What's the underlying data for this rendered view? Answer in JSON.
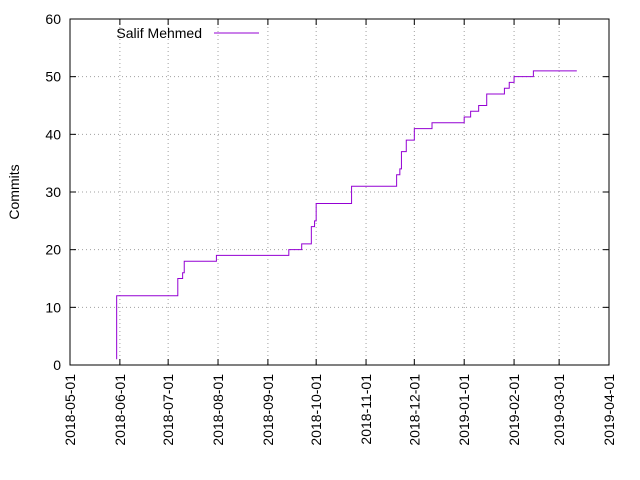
{
  "chart_data": {
    "type": "line",
    "title": "",
    "xlabel": "",
    "ylabel": "Commits",
    "ylim": [
      0,
      60
    ],
    "xlim": [
      "2018-05-01",
      "2019-04-01"
    ],
    "grid": true,
    "legend_position": "top-left",
    "yticks": [
      0,
      10,
      20,
      30,
      40,
      50,
      60
    ],
    "xticks": [
      "2018-05-01",
      "2018-06-01",
      "2018-07-01",
      "2018-08-01",
      "2018-09-01",
      "2018-10-01",
      "2018-11-01",
      "2018-12-01",
      "2019-01-01",
      "2019-02-01",
      "2019-03-01",
      "2019-04-01"
    ],
    "series": [
      {
        "name": "Salif Mehmed",
        "color": "#9400d3",
        "step": true,
        "x": [
          "2018-05-30",
          "2018-05-30",
          "2018-07-07",
          "2018-07-07",
          "2018-07-10",
          "2018-07-11",
          "2018-07-11",
          "2018-07-31",
          "2018-09-14",
          "2018-09-22",
          "2018-09-28",
          "2018-09-28",
          "2018-09-30",
          "2018-10-01",
          "2018-10-01",
          "2018-10-23",
          "2018-10-23",
          "2018-11-20",
          "2018-11-20",
          "2018-11-22",
          "2018-11-23",
          "2018-11-23",
          "2018-11-26",
          "2018-11-26",
          "2018-12-01",
          "2018-12-01",
          "2018-12-03",
          "2018-12-12",
          "2018-12-19",
          "2019-01-01",
          "2019-01-05",
          "2019-01-10",
          "2019-01-15",
          "2019-01-26",
          "2019-01-29",
          "2019-02-01",
          "2019-02-06",
          "2019-02-13",
          "2019-02-13",
          "2019-03-12"
        ],
        "y": [
          1,
          12,
          13,
          15,
          16,
          17,
          18,
          19,
          20,
          21,
          21,
          24,
          25,
          26,
          28,
          29,
          31,
          32,
          33,
          34,
          36,
          37,
          38,
          39,
          40,
          41,
          41,
          42,
          42,
          43,
          44,
          45,
          47,
          48,
          49,
          50,
          50,
          50,
          51,
          51
        ]
      }
    ]
  }
}
